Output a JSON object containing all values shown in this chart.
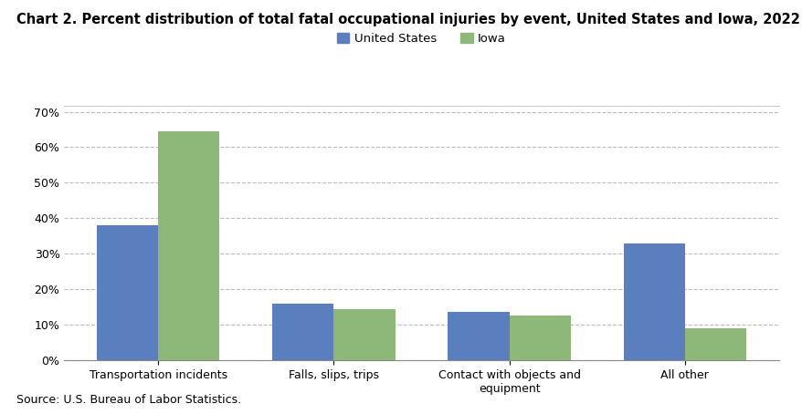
{
  "title": "Chart 2. Percent distribution of total fatal occupational injuries by event, United States and Iowa, 2022",
  "categories": [
    "Transportation incidents",
    "Falls, slips, trips",
    "Contact with objects and\nequipment",
    "All other"
  ],
  "us_values": [
    38.0,
    16.0,
    13.5,
    33.0
  ],
  "iowa_values": [
    64.5,
    14.5,
    12.5,
    9.0
  ],
  "us_color": "#5b7fbe",
  "iowa_color": "#8db87a",
  "us_label": "United States",
  "iowa_label": "Iowa",
  "ylim": [
    0,
    70
  ],
  "yticks": [
    0,
    10,
    20,
    30,
    40,
    50,
    60,
    70
  ],
  "source": "Source: U.S. Bureau of Labor Statistics.",
  "bar_width": 0.35,
  "grid_color": "#bbbbbb",
  "grid_linestyle": "--",
  "background_color": "#ffffff",
  "title_fontsize": 10.5,
  "tick_fontsize": 9,
  "legend_fontsize": 9.5,
  "source_fontsize": 9
}
